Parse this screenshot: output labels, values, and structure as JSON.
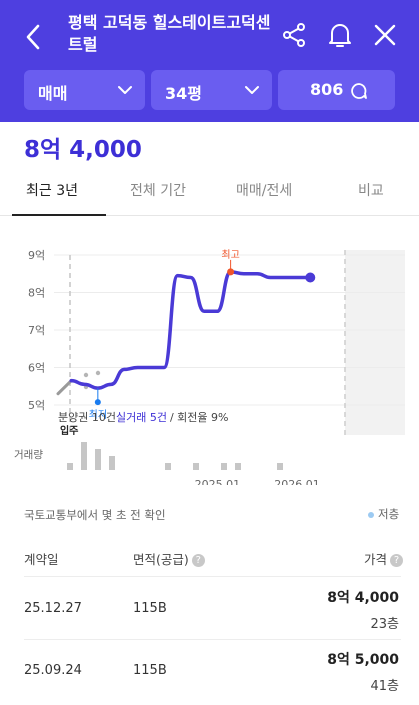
{
  "header": {
    "title": "평택 고덕동 힐스테이트고덕센트럴",
    "filters": {
      "type": "매매",
      "size": "34평",
      "talk_count": "806"
    }
  },
  "price": "8억 4,000",
  "tabs": [
    "최근 3년",
    "전체 기간",
    "매매/전세",
    "비교"
  ],
  "chart_data": {
    "type": "line",
    "y_ticks": [
      "9억",
      "8억",
      "7억",
      "6억",
      "5억"
    ],
    "ylim": [
      5,
      9
    ],
    "x_ticks": [
      "2025.01",
      "2026.01"
    ],
    "series": [
      {
        "x": [
          "2023.01",
          "2023.03",
          "2023.05",
          "2023.07",
          "2023.09",
          "2023.11",
          "2024.01",
          "2024.03",
          "2024.05",
          "2024.07",
          "2024.09",
          "2024.11",
          "2025.01",
          "2025.03",
          "2025.05",
          "2025.07",
          "2025.09",
          "2025.11",
          "2026.01",
          "2026.03"
        ],
        "values": [
          5.3,
          5.65,
          5.55,
          5.45,
          5.55,
          5.95,
          6.0,
          6.0,
          6.0,
          8.45,
          8.4,
          7.5,
          7.5,
          8.55,
          8.5,
          8.5,
          8.4,
          8.4,
          8.4,
          8.4
        ]
      }
    ],
    "annotations": {
      "high": "최고",
      "low": "최저",
      "move_in": "입주"
    },
    "stats": {
      "presale": "분양권 10건",
      "actual": "실거래 5건",
      "turnover": "/ 회전율 9%"
    },
    "volume_label": "거래량",
    "volume": [
      1,
      4,
      3,
      2,
      0,
      0,
      0,
      1,
      0,
      1,
      0,
      1,
      1,
      0,
      0,
      1
    ]
  },
  "source_text": "국토교통부에서 몇 초 전 확인",
  "legend_low": "저층",
  "table": {
    "headers": {
      "date": "계약일",
      "area": "면적(공급)",
      "price": "가격"
    },
    "rows": [
      {
        "date": "25.12.27",
        "area": "115B",
        "amount": "8억 4,000",
        "floor": "23층"
      },
      {
        "date": "25.09.24",
        "area": "115B",
        "amount": "8억 5,000",
        "floor": "41층"
      }
    ]
  },
  "colors": {
    "brand": "#4e3fe0",
    "line": "#4a3ad6",
    "high": "#f0552b",
    "low": "#1a7cf0"
  }
}
